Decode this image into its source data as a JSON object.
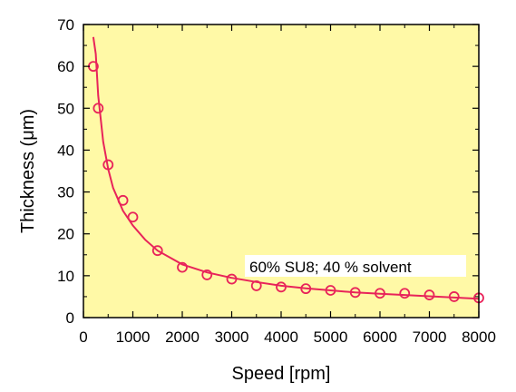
{
  "chart_data": {
    "type": "scatter",
    "title": "",
    "xlabel": "Speed  [rpm]",
    "ylabel": "Thickness (μm)",
    "xlim": [
      0,
      8000
    ],
    "ylim": [
      0,
      70
    ],
    "x_ticks": [
      0,
      1000,
      2000,
      3000,
      4000,
      5000,
      6000,
      7000,
      8000
    ],
    "y_ticks": [
      0,
      10,
      20,
      30,
      40,
      50,
      60,
      70
    ],
    "grid": false,
    "annotation": "60% SU8; 40 % solvent",
    "colors": {
      "plot_background": "#fff9a6",
      "series": "#e8245a"
    },
    "series": [
      {
        "kind": "markers",
        "marker": "open-circle",
        "x": [
          200,
          300,
          500,
          800,
          1000,
          1500,
          2000,
          2500,
          3000,
          3500,
          4000,
          4500,
          5000,
          5500,
          6000,
          6500,
          7000,
          7500,
          8000
        ],
        "y": [
          60,
          50,
          36.5,
          28,
          24,
          16,
          12,
          10.2,
          9.2,
          7.6,
          7.3,
          6.9,
          6.5,
          6,
          5.8,
          5.8,
          5.4,
          5,
          4.7
        ]
      },
      {
        "kind": "fit-line",
        "x": [
          200,
          250,
          300,
          400,
          500,
          600,
          800,
          1000,
          1250,
          1500,
          2000,
          2500,
          3000,
          3500,
          4000,
          4500,
          5000,
          5500,
          6000,
          6500,
          7000,
          7500,
          8000
        ],
        "y": [
          67,
          63,
          53,
          42,
          35.5,
          31,
          25.5,
          22,
          18.6,
          16,
          12.7,
          10.8,
          9.5,
          8.5,
          7.6,
          7.0,
          6.5,
          6.0,
          5.7,
          5.4,
          5.1,
          4.8,
          4.5
        ]
      }
    ]
  }
}
